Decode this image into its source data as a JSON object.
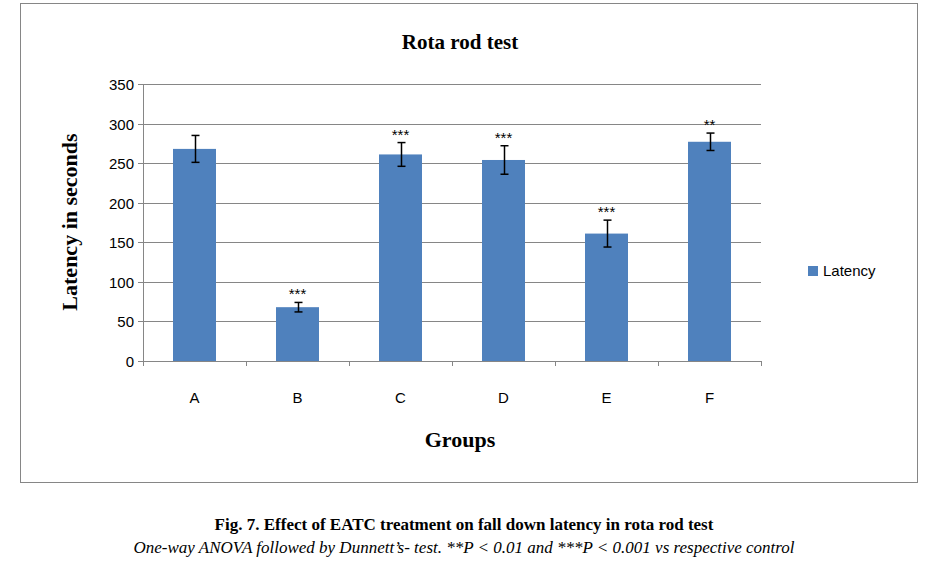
{
  "chart_data": {
    "type": "bar",
    "title": "Rota rod test",
    "x_label": "Groups",
    "y_label": "Latency in seconds",
    "categories": [
      "A",
      "B",
      "C",
      "D",
      "E",
      "F"
    ],
    "series": [
      {
        "name": "Latency",
        "color": "#4f81bd",
        "values": [
          268,
          68,
          261,
          254,
          161,
          277
        ],
        "errors": [
          17,
          6,
          15,
          18,
          17,
          11
        ]
      }
    ],
    "annotations": [
      null,
      "***",
      "***",
      "***",
      "***",
      "**"
    ],
    "ylim": [
      0,
      350
    ],
    "yticks": [
      0,
      50,
      100,
      150,
      200,
      250,
      300,
      350
    ],
    "grid": true,
    "legend": "right",
    "caption": "Fig. 7. Effect of EATC treatment on fall down latency in rota rod test",
    "footnote": "One-way ANOVA followed by Dunnett’s- test. **P < 0.01 and ***P < 0.001 vs respective control"
  }
}
